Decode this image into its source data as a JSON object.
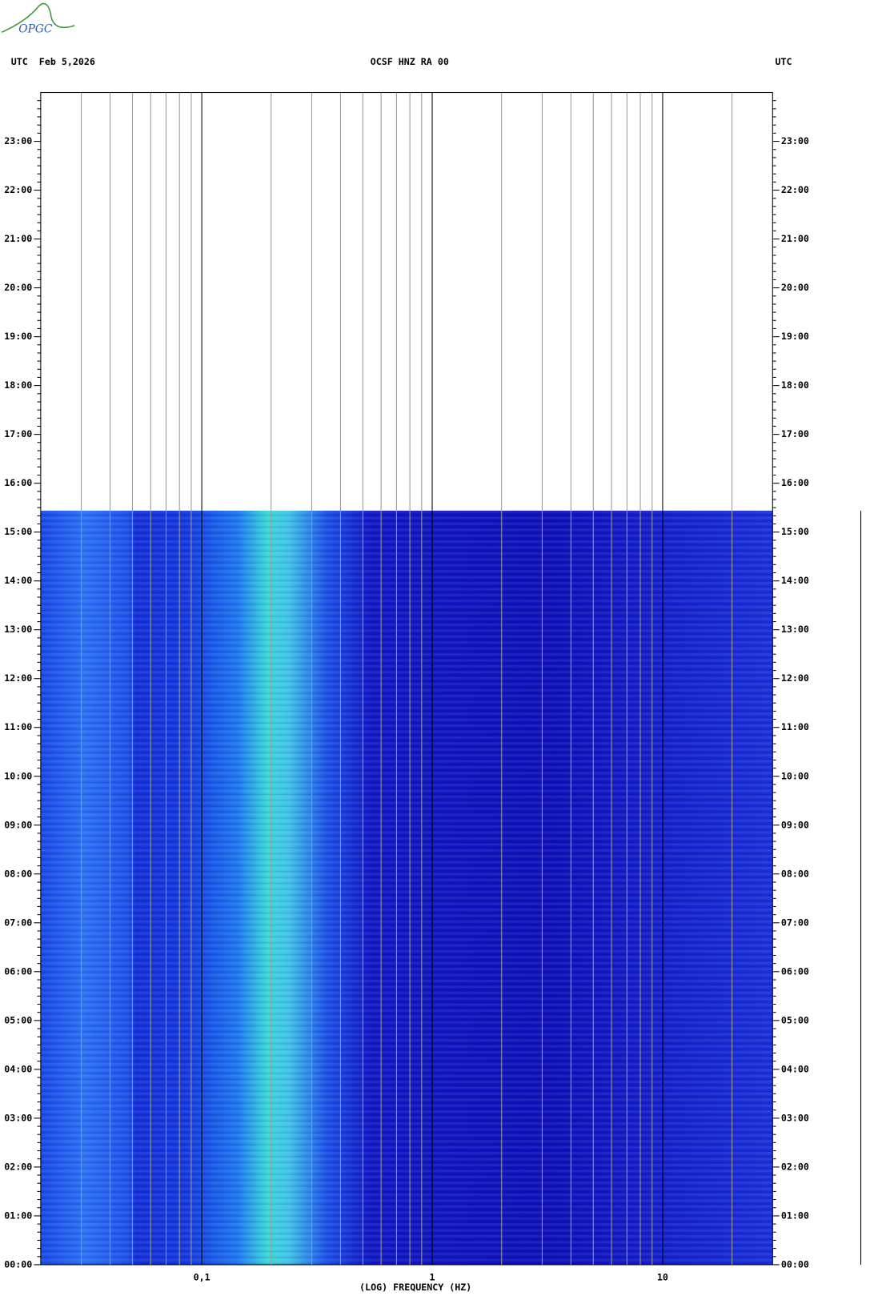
{
  "logo": "OPGC",
  "chart_data": {
    "type": "spectrogram",
    "date_label": "UTC  Feb 5,2026",
    "title": "OCSF HNZ RA 00",
    "y_unit": "UTC",
    "xlabel": "(LOG) FREQUENCY (HZ)",
    "xscale": "log",
    "xlim": [
      0.02,
      30
    ],
    "xticks": [
      {
        "value": 0.1,
        "label": "0,1"
      },
      1,
      10
    ],
    "xminor": [
      0.03,
      0.04,
      0.05,
      0.06,
      0.07,
      0.08,
      0.09,
      0.2,
      0.3,
      0.4,
      0.5,
      0.6,
      0.7,
      0.8,
      0.9,
      2,
      3,
      4,
      5,
      6,
      7,
      8,
      9,
      20
    ],
    "ylim": [
      0,
      24
    ],
    "yticks": [
      {
        "value": 0,
        "label": "00:00"
      },
      {
        "value": 1,
        "label": "01:00"
      },
      {
        "value": 2,
        "label": "02:00"
      },
      {
        "value": 3,
        "label": "03:00"
      },
      {
        "value": 4,
        "label": "04:00"
      },
      {
        "value": 5,
        "label": "05:00"
      },
      {
        "value": 6,
        "label": "06:00"
      },
      {
        "value": 7,
        "label": "07:00"
      },
      {
        "value": 8,
        "label": "08:00"
      },
      {
        "value": 9,
        "label": "09:00"
      },
      {
        "value": 10,
        "label": "10:00"
      },
      {
        "value": 11,
        "label": "11:00"
      },
      {
        "value": 12,
        "label": "12:00"
      },
      {
        "value": 13,
        "label": "13:00"
      },
      {
        "value": 14,
        "label": "14:00"
      },
      {
        "value": 15,
        "label": "15:00"
      },
      {
        "value": 16,
        "label": "16:00"
      },
      {
        "value": 17,
        "label": "17:00"
      },
      {
        "value": 18,
        "label": "18:00"
      },
      {
        "value": 19,
        "label": "19:00"
      },
      {
        "value": 20,
        "label": "20:00"
      },
      {
        "value": 21,
        "label": "21:00"
      },
      {
        "value": 22,
        "label": "22:00"
      },
      {
        "value": 23,
        "label": "23:00"
      }
    ],
    "yminor_per_major": 6
  }
}
